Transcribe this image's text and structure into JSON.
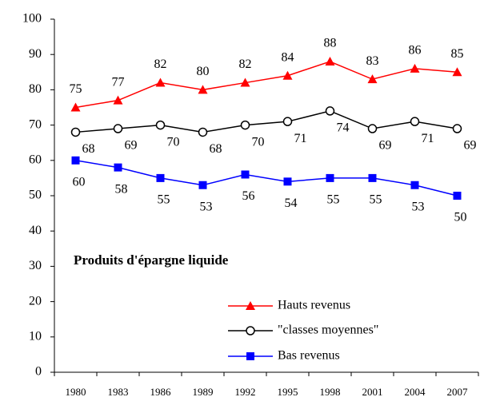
{
  "chart_data": {
    "type": "line",
    "annotation": "Produits d'épargne liquide",
    "categories": [
      "1980",
      "1983",
      "1986",
      "1989",
      "1992",
      "1995",
      "1998",
      "2001",
      "2004",
      "2007"
    ],
    "series": [
      {
        "name": "Hauts revenus",
        "color": "#ff0000",
        "marker": "triangle",
        "values": [
          75,
          77,
          82,
          80,
          82,
          84,
          88,
          83,
          86,
          85
        ]
      },
      {
        "name": "\"classes moyennes\"",
        "color": "#000000",
        "marker": "circle",
        "values": [
          68,
          69,
          70,
          68,
          70,
          71,
          74,
          69,
          71,
          69
        ]
      },
      {
        "name": "Bas revenus",
        "color": "#0000ff",
        "marker": "square",
        "values": [
          60,
          58,
          55,
          53,
          56,
          54,
          55,
          55,
          53,
          50
        ]
      }
    ],
    "ylim": [
      0,
      100
    ],
    "yticks": [
      0,
      10,
      20,
      30,
      40,
      50,
      60,
      70,
      80,
      90,
      100
    ],
    "legend": "lower right",
    "grid": false
  }
}
